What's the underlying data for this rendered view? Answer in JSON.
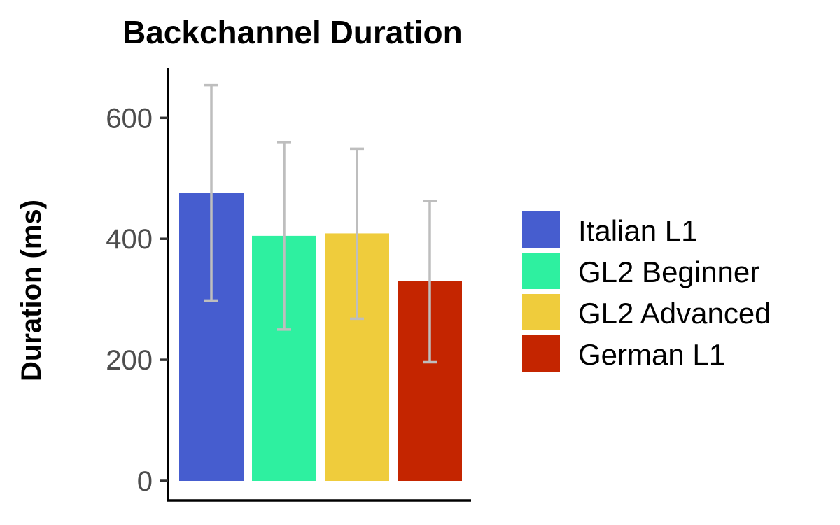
{
  "chart_data": {
    "type": "bar",
    "title": "Backchannel Duration",
    "xlabel": "",
    "ylabel": "Duration (ms)",
    "categories": [
      "Italian L1",
      "GL2 Beginner",
      "GL2 Advanced",
      "German L1"
    ],
    "values": [
      476,
      405,
      409,
      330
    ],
    "error_low": [
      298,
      250,
      268,
      196
    ],
    "error_high": [
      654,
      560,
      549,
      463
    ],
    "colors": [
      "#465dcf",
      "#2ef0a0",
      "#efcc3c",
      "#c42500"
    ],
    "error_bar_color": "#bebebe",
    "ylim": [
      0,
      680
    ],
    "yticks": [
      0,
      200,
      400,
      600
    ],
    "grid": false,
    "legend": {
      "position": "right",
      "entries": [
        "Italian L1",
        "GL2 Beginner",
        "GL2 Advanced",
        "German L1"
      ]
    }
  }
}
